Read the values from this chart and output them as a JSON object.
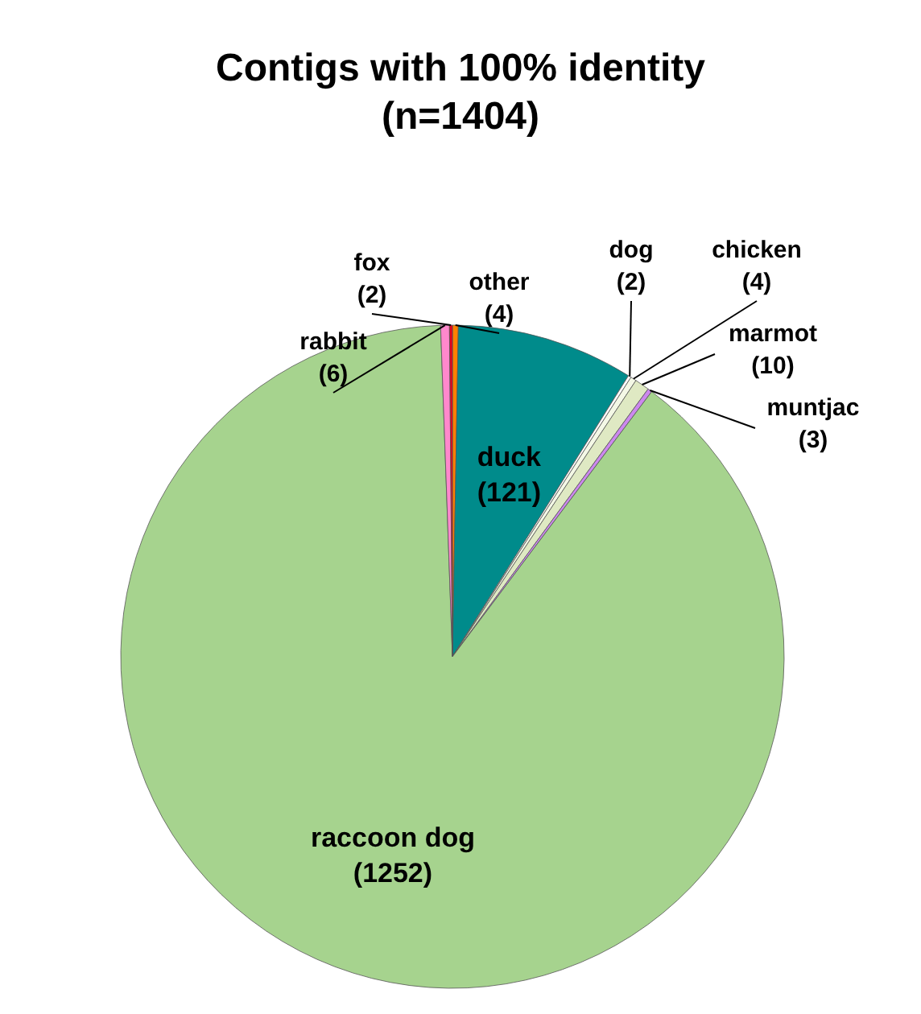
{
  "chart_data": {
    "type": "pie",
    "title": "Contigs with 100% identity",
    "subtitle": "(n=1404)",
    "categories": [
      "other",
      "duck",
      "dog",
      "chicken",
      "marmot",
      "muntjac",
      "raccoon dog",
      "rabbit",
      "fox"
    ],
    "values": [
      4,
      121,
      2,
      4,
      10,
      3,
      1252,
      6,
      2
    ],
    "value_labels": [
      "(4)",
      "(121)",
      "(2)",
      "(4)",
      "(10)",
      "(3)",
      "(1252)",
      "(6)",
      "(2)"
    ],
    "colors": [
      "#ff8000",
      "#008b8b",
      "#ffffff",
      "#f4f8e6",
      "#dfe9c3",
      "#cc88ee",
      "#a6d38e",
      "#ff88cc",
      "#e8001c"
    ]
  }
}
